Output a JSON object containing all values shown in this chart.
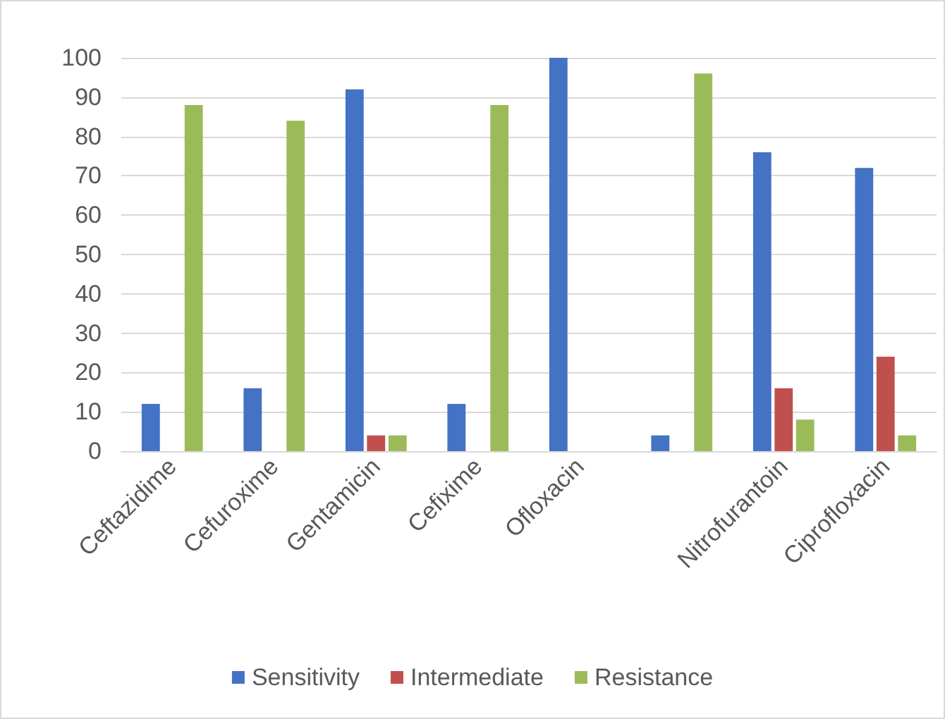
{
  "chart_data": {
    "type": "bar",
    "categories": [
      "Ceftazidime",
      "Cefuroxime",
      "Gentamicin",
      "Cefixime",
      "Ofloxacin",
      null,
      "Nitrofurantoin",
      "Ciprofloxacin"
    ],
    "series": [
      {
        "name": "Sensitivity",
        "color": "#4472c4",
        "values": [
          12,
          16,
          92,
          12,
          100,
          4,
          76,
          72
        ]
      },
      {
        "name": "Intermediate",
        "color": "#c0504d",
        "values": [
          0,
          0,
          4,
          0,
          0,
          0,
          16,
          24
        ]
      },
      {
        "name": "Resistance",
        "color": "#9bbb59",
        "values": [
          88,
          84,
          4,
          88,
          0,
          96,
          8,
          4
        ]
      }
    ],
    "ylim": [
      0,
      100
    ],
    "yticks": [
      0,
      10,
      20,
      30,
      40,
      50,
      60,
      70,
      80,
      90,
      100
    ],
    "grid": "y",
    "legend": "bottom"
  }
}
